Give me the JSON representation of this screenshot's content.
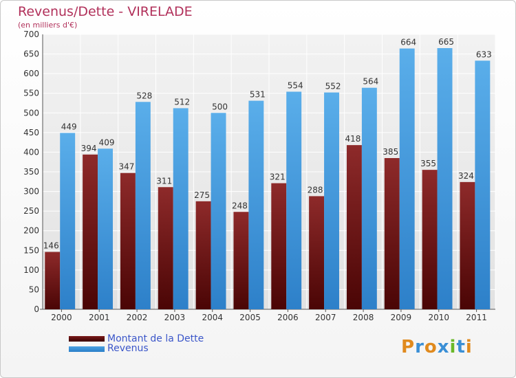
{
  "header": {
    "title": "Revenus/Dette - VIRELADE",
    "subtitle": "(en milliers d'€)"
  },
  "legend": {
    "debt_label": "Montant de la Dette",
    "revenue_label": "Revenus"
  },
  "logo": {
    "text": "Proxiti"
  },
  "colors": {
    "debt": "#7a1a1a",
    "revenue": "#4a9fe0",
    "title": "#b1305a",
    "legend_text": "#3b56c9"
  },
  "chart_data": {
    "type": "bar",
    "title": "Revenus/Dette - VIRELADE",
    "subtitle": "(en milliers d'€)",
    "categories": [
      "2000",
      "2001",
      "2002",
      "2003",
      "2004",
      "2005",
      "2006",
      "2007",
      "2008",
      "2009",
      "2010",
      "2011"
    ],
    "series": [
      {
        "name": "Montant de la Dette",
        "values": [
          146,
          394,
          347,
          311,
          275,
          248,
          321,
          288,
          418,
          385,
          355,
          324
        ]
      },
      {
        "name": "Revenus",
        "values": [
          449,
          409,
          528,
          512,
          500,
          531,
          554,
          552,
          564,
          664,
          665,
          633
        ]
      }
    ],
    "ylim": [
      0,
      700
    ],
    "yticks": [
      0,
      50,
      100,
      150,
      200,
      250,
      300,
      350,
      400,
      450,
      500,
      550,
      600,
      650,
      700
    ],
    "grid": true,
    "legend_position": "bottom-left"
  }
}
